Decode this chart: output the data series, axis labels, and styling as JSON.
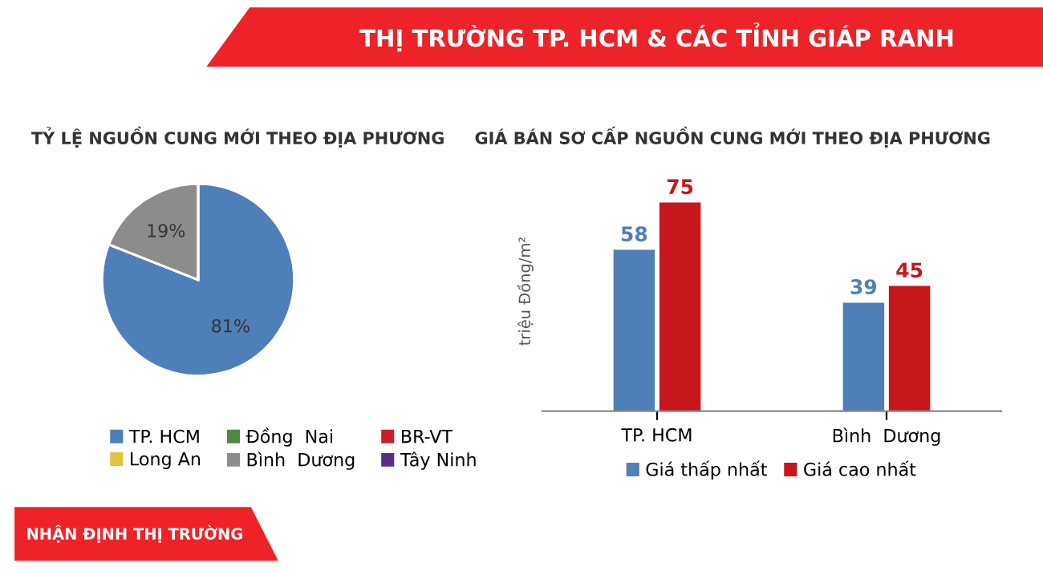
{
  "chart_data": [
    {
      "type": "pie",
      "title": "TỶ LỆ NGUỒN CUNG MỚI THEO ĐỊA PHƯƠNG",
      "categories": [
        "TP. HCM",
        "Long An",
        "Đồng  Nai",
        "Bình  Dương",
        "BR-VT",
        "Tây Ninh"
      ],
      "values": [
        81,
        0,
        0,
        19,
        0,
        0
      ],
      "colors": [
        "#4f7fb8",
        "#e3c33a",
        "#4f8a43",
        "#8c8c8c",
        "#c8202a",
        "#5b2e85"
      ],
      "value_labels": [
        "81%",
        null,
        null,
        "19%",
        null,
        null
      ],
      "legend": "bottom",
      "annotations": [
        "THỊ TRƯỜNG TP. HCM & CÁC TỈNH GIÁP RANH",
        "NHẬN ĐỊNH THỊ TRƯỜNG"
      ]
    },
    {
      "type": "bar",
      "title": "GIÁ BÁN SƠ CẤP NGUỒN CUNG MỚI THEO ĐỊA PHƯƠNG",
      "ylabel": "triệu Đồng/m²",
      "categories": [
        "TP. HCM",
        "Bình  Dương"
      ],
      "series": [
        {
          "name": "Giá thấp nhất",
          "color": "#4f7fb8",
          "values": [
            58,
            39
          ]
        },
        {
          "name": "Giá cao nhất",
          "color": "#c8161d",
          "values": [
            75,
            45
          ]
        }
      ],
      "data_labels": true,
      "legend": "bottom",
      "tick_labels": "x"
    }
  ]
}
